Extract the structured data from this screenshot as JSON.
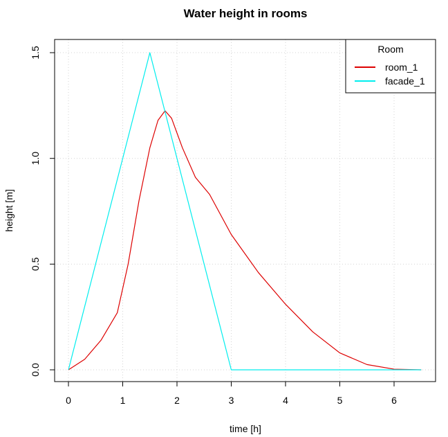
{
  "chart_data": {
    "type": "line",
    "title": "Water height in rooms",
    "xlabel": "time [h]",
    "ylabel": "height [m]",
    "xlim": [
      -0.26,
      6.76
    ],
    "ylim": [
      -0.06,
      1.56
    ],
    "xticks": [
      0,
      1,
      2,
      3,
      4,
      5,
      6
    ],
    "yticks": [
      0.0,
      0.5,
      1.0,
      1.5
    ],
    "ytick_labels": [
      "0.0",
      "0.5",
      "1.0",
      "1.5"
    ],
    "grid": true,
    "legend": {
      "title": "Room",
      "placement": "top-right"
    },
    "series": [
      {
        "name": "room_1",
        "color": "#dd0000",
        "x": [
          0,
          0.3,
          0.6,
          0.9,
          1.1,
          1.3,
          1.5,
          1.65,
          1.78,
          1.9,
          2.1,
          2.34,
          2.6,
          3.0,
          3.5,
          4.0,
          4.5,
          5.0,
          5.5,
          6.0,
          6.5
        ],
        "y": [
          0,
          0.05,
          0.14,
          0.27,
          0.5,
          0.8,
          1.05,
          1.18,
          1.225,
          1.19,
          1.05,
          0.91,
          0.83,
          0.64,
          0.46,
          0.31,
          0.18,
          0.08,
          0.025,
          0.003,
          0
        ]
      },
      {
        "name": "facade_1",
        "color": "#00eeee",
        "x": [
          0,
          1.5,
          3,
          6.5
        ],
        "y": [
          0,
          1.5,
          0,
          0
        ]
      }
    ]
  }
}
